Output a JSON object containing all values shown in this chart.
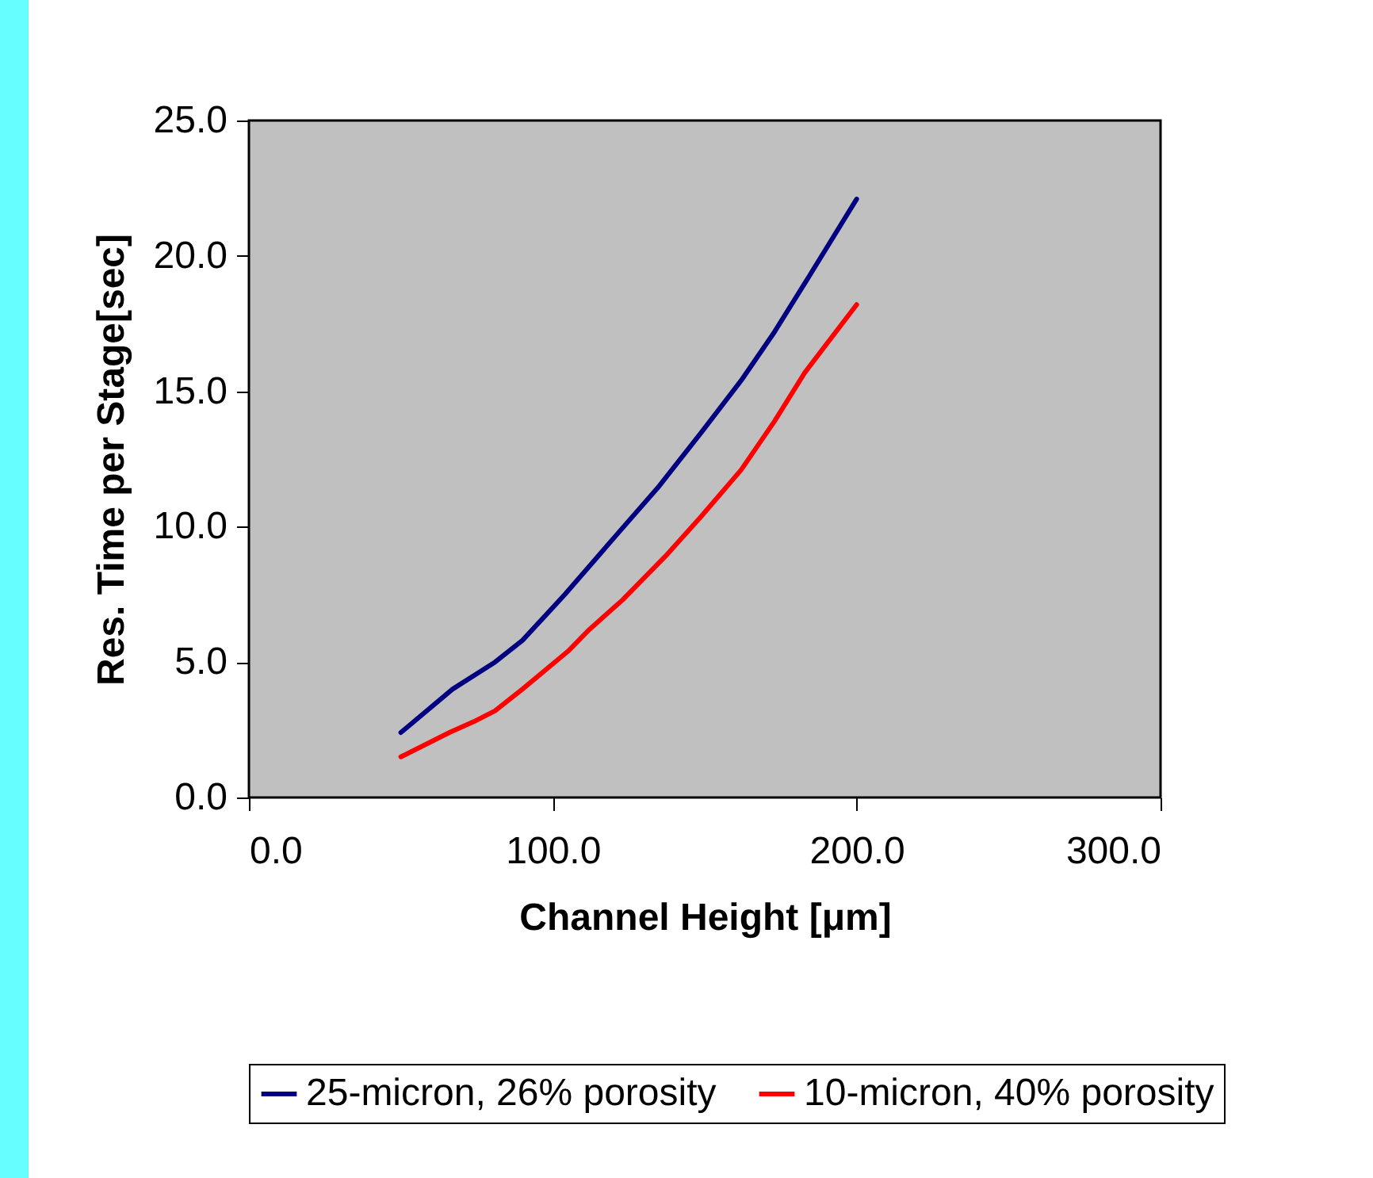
{
  "chart_data": {
    "type": "line",
    "xlabel": "Channel Height [μm]",
    "ylabel": "Res. Time per Stage[sec]",
    "xlim": [
      0,
      300
    ],
    "xticks": [
      {
        "value": 0,
        "label": "0.0"
      },
      {
        "value": 100,
        "label": "100.0"
      },
      {
        "value": 200,
        "label": "200.0"
      },
      {
        "value": 300,
        "label": "300.0"
      }
    ],
    "ylim": [
      0,
      25
    ],
    "yticks": [
      {
        "value": 0,
        "label": "0.0"
      },
      {
        "value": 5,
        "label": "5.0"
      },
      {
        "value": 10,
        "label": "10.0"
      },
      {
        "value": 15,
        "label": "15.0"
      },
      {
        "value": 20,
        "label": "20.0"
      },
      {
        "value": 25,
        "label": "25.0"
      }
    ],
    "grid": false,
    "legend": "bottom",
    "marker": "none",
    "series": [
      {
        "name": "25-micron, 26% porosity",
        "color": "#000080",
        "x": [
          50,
          67,
          81,
          90,
          104,
          121,
          135,
          149,
          162,
          173,
          183,
          200
        ],
        "values": [
          2.4,
          4.0,
          5.0,
          5.8,
          7.5,
          9.7,
          11.5,
          13.5,
          15.4,
          17.2,
          19.0,
          22.1
        ]
      },
      {
        "name": "10-micron, 40% porosity",
        "color": "#ff0000",
        "x": [
          50,
          66,
          74,
          81,
          90,
          105,
          112,
          123,
          137,
          149,
          162,
          173,
          183,
          200
        ],
        "values": [
          1.5,
          2.4,
          2.8,
          3.2,
          4.0,
          5.4,
          6.2,
          7.3,
          8.9,
          10.4,
          12.1,
          13.9,
          15.7,
          18.2
        ]
      }
    ]
  }
}
